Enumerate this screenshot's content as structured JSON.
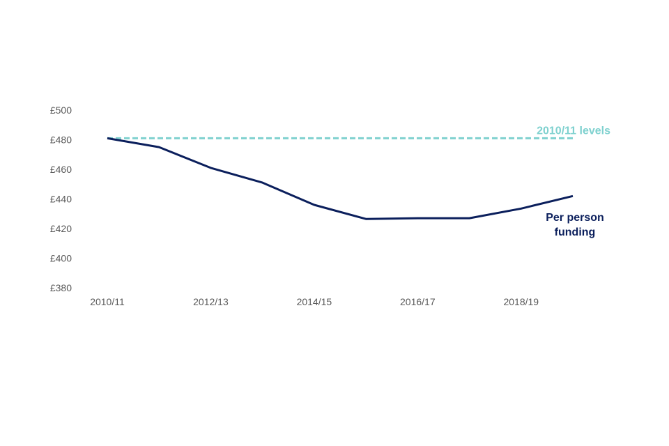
{
  "chart_data": {
    "type": "line",
    "title": "",
    "xlabel": "",
    "ylabel": "",
    "x": [
      "2010/11",
      "2011/12",
      "2012/13",
      "2013/14",
      "2014/15",
      "2015/16",
      "2016/17",
      "2017/18",
      "2018/19",
      "2019/20"
    ],
    "x_tick_labels": [
      "2010/11",
      "2012/13",
      "2014/15",
      "2016/17",
      "2018/19"
    ],
    "y_tick_labels": [
      "£380",
      "£400",
      "£420",
      "£440",
      "£460",
      "£480",
      "£500"
    ],
    "ylim": [
      380,
      500
    ],
    "grid": false,
    "series": [
      {
        "name": "Per person funding",
        "label_lines": [
          "Per person",
          "funding"
        ],
        "color": "#0b1f5c",
        "style": "solid",
        "values": [
          481,
          475,
          461,
          451,
          436,
          426.5,
          427,
          427,
          433.5,
          442
        ]
      },
      {
        "name": "2010/11 levels",
        "label_lines": [
          "2010/11 levels"
        ],
        "color": "#7fd1cf",
        "style": "dashed",
        "values": [
          481,
          481,
          481,
          481,
          481,
          481,
          481,
          481,
          481,
          481
        ]
      }
    ]
  }
}
